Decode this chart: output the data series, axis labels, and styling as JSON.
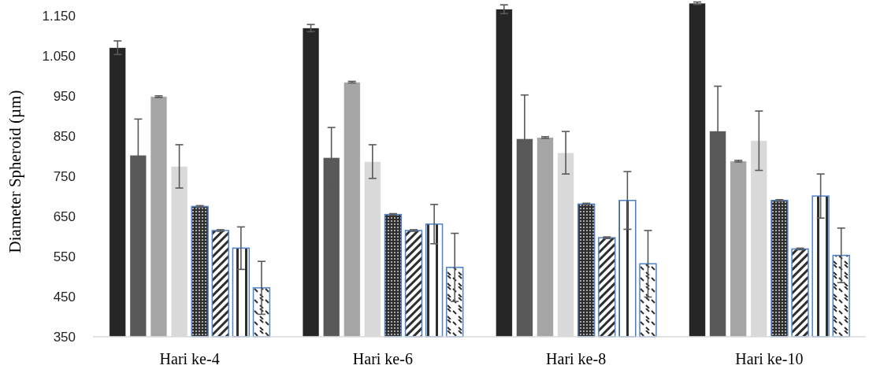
{
  "chart_data": {
    "type": "bar",
    "ylabel": "Diameter Spheroid (µm)",
    "categories": [
      "Hari ke-4",
      "Hari ke-6",
      "Hari ke-8",
      "Hari ke-10"
    ],
    "ylim": [
      350,
      1190
    ],
    "yticks": [
      350,
      450,
      550,
      650,
      750,
      850,
      950,
      {
        "value": 1050,
        "label": "1.050"
      },
      {
        "value": 1150,
        "label": "1.150"
      }
    ],
    "grid": false,
    "series": [
      {
        "color": "#262626",
        "values": [
          1071,
          1120,
          1167,
          1182
        ],
        "errors": [
          17,
          9,
          11,
          3
        ]
      },
      {
        "color": "#595959",
        "values": [
          803,
          797,
          844,
          863
        ],
        "errors": [
          90,
          75,
          109,
          112
        ]
      },
      {
        "color": "#a5a5a5",
        "values": [
          949,
          985,
          847,
          788
        ],
        "errors": [
          2,
          2,
          2,
          2
        ]
      },
      {
        "color": "#d9d9d9",
        "values": [
          775,
          787,
          809,
          839
        ],
        "errors": [
          54,
          42,
          53,
          74
        ]
      },
      {
        "color": "#4f81c7",
        "values": [
          675,
          655,
          681,
          690
        ],
        "errors": [
          2,
          2,
          2,
          2
        ]
      },
      {
        "color": "#4f81c7",
        "values": [
          615,
          615,
          597,
          569
        ],
        "errors": [
          2,
          2,
          2,
          2
        ]
      },
      {
        "color": "#4f81c7",
        "values": [
          571,
          631,
          690,
          701
        ],
        "errors": [
          53,
          49,
          72,
          55
        ]
      },
      {
        "color": "#4f81c7",
        "values": [
          472,
          523,
          532,
          553
        ],
        "errors": [
          66,
          85,
          83,
          68
        ]
      }
    ]
  }
}
